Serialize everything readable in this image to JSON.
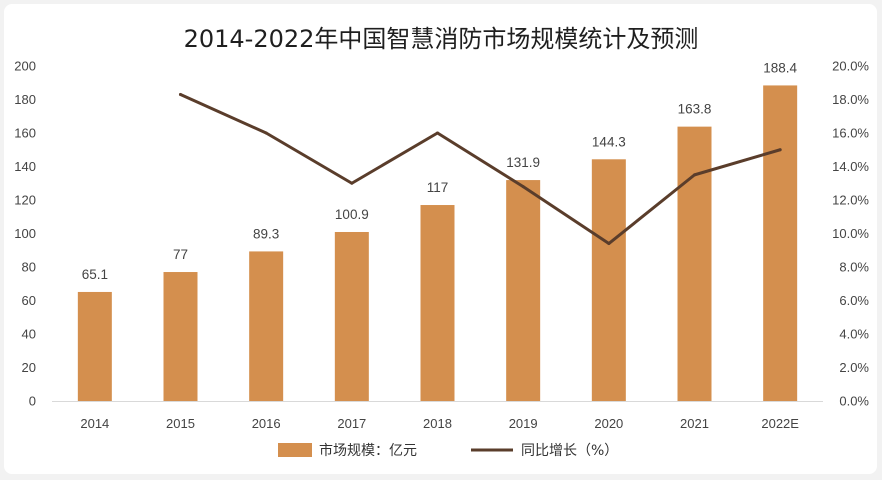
{
  "chart_data": {
    "type": "bar",
    "title": "2014-2022年中国智慧消防市场规模统计及预测",
    "categories": [
      "2014",
      "2015",
      "2016",
      "2017",
      "2018",
      "2019",
      "2020",
      "2021",
      "2022E"
    ],
    "series": [
      {
        "name": "市场规模：亿元",
        "type": "bar",
        "axis": "left",
        "color": "#d48f4e",
        "values": [
          65.1,
          77,
          89.3,
          100.9,
          117,
          131.9,
          144.3,
          163.8,
          188.4
        ],
        "labels": [
          "65.1",
          "77",
          "89.3",
          "100.9",
          "117",
          "131.9",
          "144.3",
          "163.8",
          "188.4"
        ]
      },
      {
        "name": "同比增长（%）",
        "type": "line",
        "axis": "right",
        "color": "#5a3d2b",
        "values": [
          null,
          18.3,
          16.0,
          13.0,
          16.0,
          12.8,
          9.4,
          13.5,
          15.0
        ]
      }
    ],
    "y_left": {
      "range": [
        0,
        200
      ],
      "ticks": [
        "0",
        "20",
        "40",
        "60",
        "80",
        "100",
        "120",
        "140",
        "160",
        "180",
        "200"
      ]
    },
    "y_right": {
      "range": [
        0,
        20
      ],
      "ticks": [
        "0.0%",
        "2.0%",
        "4.0%",
        "6.0%",
        "8.0%",
        "10.0%",
        "12.0%",
        "14.0%",
        "16.0%",
        "18.0%",
        "20.0%"
      ]
    },
    "grid": false,
    "legend_position": "bottom"
  }
}
